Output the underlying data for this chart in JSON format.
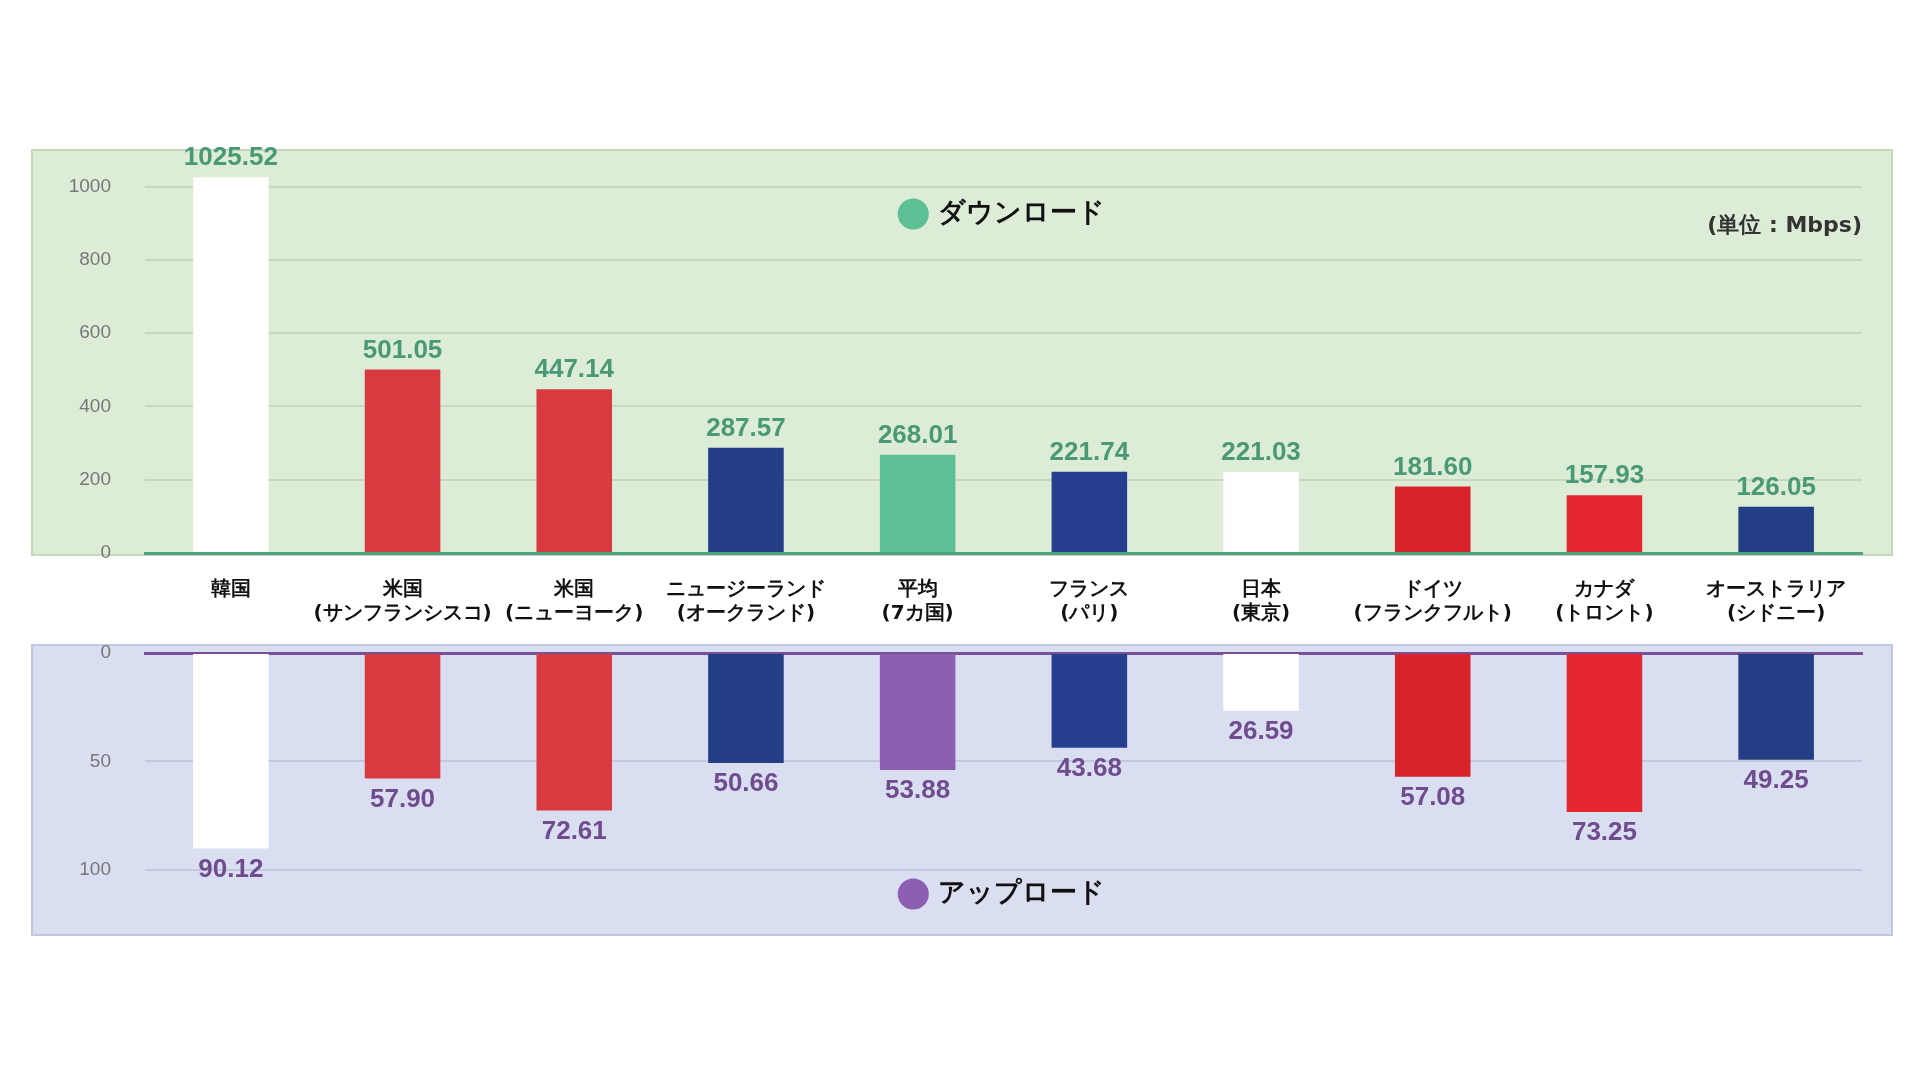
{
  "chart_data": [
    {
      "type": "bar",
      "categories": [
        "韓国",
        "米国\n(サンフランシスコ)",
        "米国\n(ニューヨーク)",
        "ニュージーランド\n(オークランド)",
        "平均\n(7カ国)",
        "フランス\n(パリ)",
        "日本\n(東京)",
        "ドイツ\n(フランクフルト)",
        "カナダ\n(トロント)",
        "オーストラリア\n(シドニー)"
      ],
      "series": [
        {
          "name": "ダウンロード",
          "color": "#5dbf94",
          "colors": [
            "#ffffff",
            "#d83a3f",
            "#d83a3f",
            "#233e85",
            "#5dbf94",
            "#253f8e",
            "#ffffff",
            "#d9232a",
            "#e3262f",
            "#233e85"
          ],
          "values": [
            1025.52,
            501.05,
            447.14,
            287.57,
            268.01,
            221.74,
            221.03,
            181.6,
            157.93,
            126.05
          ],
          "value_labels": [
            "1025.52",
            "501.05",
            "447.14",
            "287.57",
            "268.01",
            "221.74",
            "221.03",
            "181.60",
            "157.93",
            "126.05"
          ]
        }
      ],
      "ylim": [
        0,
        1100
      ],
      "yticks": [
        0,
        200,
        400,
        600,
        800,
        1000
      ],
      "grid": "y",
      "legend": "top",
      "annotations": [
        "(単位 : Mbps)"
      ]
    },
    {
      "type": "bar",
      "categories": [
        null,
        null,
        null,
        null,
        null,
        null,
        null,
        null,
        null,
        null
      ],
      "series": [
        {
          "name": "アップロード",
          "color": "#8c5fb3",
          "colors": [
            "#ffffff",
            "#d83a3f",
            "#d83a3f",
            "#233e85",
            "#8c5fb3",
            "#253f8e",
            "#ffffff",
            "#d9232a",
            "#e3262f",
            "#233e85"
          ],
          "values": [
            90.12,
            57.9,
            72.61,
            50.66,
            53.88,
            43.68,
            26.59,
            57.08,
            73.25,
            49.25
          ],
          "value_labels": [
            "90.12",
            "57.90",
            "72.61",
            "50.66",
            "53.88",
            "43.68",
            "26.59",
            "57.08",
            "73.25",
            "49.25"
          ]
        }
      ],
      "ylim": [
        130,
        0
      ],
      "yticks": [
        0,
        50,
        100
      ],
      "grid": "y",
      "legend": "bottom",
      "tick_labels": "y"
    }
  ]
}
